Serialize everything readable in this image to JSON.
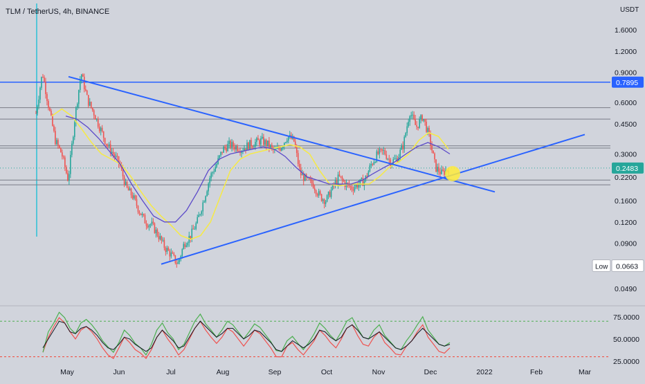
{
  "header": {
    "symbol": "TLM / TetherUS, 4h, BINANCE"
  },
  "axis": {
    "currency": "USDT"
  },
  "chart_data": [
    {
      "type": "candlestick",
      "title": "TLM / TetherUS, 4h, BINANCE",
      "scale": "log",
      "y_ticks": [
        1.6,
        1.2,
        0.9,
        0.6,
        0.45,
        0.3,
        0.22,
        0.16,
        0.12,
        0.09,
        0.049
      ],
      "y_tick_labels": [
        "1.6000",
        "1.2000",
        "0.9000",
        "0.6000",
        "0.4500",
        "0.3000",
        "0.2200",
        "0.1600",
        "0.1200",
        "0.0900",
        "0.0490"
      ],
      "x_tick_labels": [
        "May",
        "Jun",
        "Jul",
        "Aug",
        "Sep",
        "Oct",
        "Nov",
        "Dec",
        "2022",
        "Feb",
        "Mar"
      ],
      "ylim": [
        0.0395,
        2.28
      ],
      "series": [
        {
          "kind": "close_line",
          "values": [
            0.52,
            0.9,
            0.56,
            0.36,
            0.3,
            0.21,
            0.48,
            0.9,
            0.62,
            0.52,
            0.42,
            0.34,
            0.3,
            0.26,
            0.19,
            0.17,
            0.14,
            0.12,
            0.115,
            0.1,
            0.085,
            0.077,
            0.068,
            0.09,
            0.1,
            0.12,
            0.16,
            0.22,
            0.26,
            0.32,
            0.34,
            0.33,
            0.32,
            0.34,
            0.35,
            0.36,
            0.34,
            0.31,
            0.33,
            0.38,
            0.36,
            0.23,
            0.21,
            0.2,
            0.17,
            0.16,
            0.19,
            0.22,
            0.2,
            0.19,
            0.2,
            0.21,
            0.26,
            0.3,
            0.31,
            0.27,
            0.28,
            0.34,
            0.53,
            0.43,
            0.5,
            0.38,
            0.25,
            0.23,
            0.2483
          ]
        },
        {
          "kind": "ma_yellow",
          "values": [
            0.5,
            0.55,
            0.5,
            0.42,
            0.35,
            0.3,
            0.28,
            0.26,
            0.22,
            0.18,
            0.15,
            0.13,
            0.115,
            0.1,
            0.095,
            0.1,
            0.12,
            0.17,
            0.24,
            0.28,
            0.3,
            0.31,
            0.32,
            0.33,
            0.34,
            0.33,
            0.3,
            0.24,
            0.2,
            0.195,
            0.2,
            0.2,
            0.2,
            0.22,
            0.25,
            0.27,
            0.3,
            0.36,
            0.4,
            0.38,
            0.32
          ]
        },
        {
          "kind": "ma_purple",
          "values": [
            0.5,
            0.48,
            0.43,
            0.37,
            0.31,
            0.26,
            0.2,
            0.16,
            0.13,
            0.12,
            0.12,
            0.14,
            0.18,
            0.24,
            0.28,
            0.3,
            0.31,
            0.32,
            0.33,
            0.32,
            0.29,
            0.25,
            0.22,
            0.21,
            0.2,
            0.2,
            0.2,
            0.21,
            0.23,
            0.25,
            0.27,
            0.3,
            0.33,
            0.35,
            0.33,
            0.3
          ]
        }
      ],
      "price_lines": [
        0.7895,
        0.56,
        0.48,
        0.335,
        0.325,
        0.211,
        0.198
      ],
      "trendlines": [
        {
          "from": [
            "May",
            0.85
          ],
          "to": [
            "Dec",
            0.18
          ]
        },
        {
          "from": [
            "Jul",
            0.068
          ],
          "to": [
            "Mar",
            0.39
          ]
        }
      ],
      "price_labels": [
        {
          "text": "0.7895",
          "color": "#2962ff"
        },
        {
          "text": "0.2483",
          "color": "#26a69a"
        },
        {
          "text": "0.0663",
          "prefix": "Low"
        }
      ],
      "highlight": {
        "month": "Dec",
        "value": 0.23
      },
      "annotation_text": [
        "Low"
      ]
    },
    {
      "type": "line",
      "ylim": [
        25,
        85
      ],
      "y_ticks": [
        75,
        50,
        25
      ],
      "y_tick_labels": [
        "75.0000",
        "50.0000",
        "25.0000"
      ],
      "reference_lines": [
        70,
        30
      ],
      "series": [
        {
          "kind": "rsi_green",
          "values": [
            35,
            58,
            68,
            80,
            74,
            62,
            56,
            68,
            72,
            66,
            58,
            48,
            41,
            35,
            46,
            60,
            54,
            45,
            40,
            32,
            44,
            60,
            68,
            57,
            50,
            38,
            44,
            57,
            70,
            78,
            67,
            60,
            52,
            60,
            70,
            66,
            58,
            50,
            58,
            67,
            63,
            55,
            47,
            37,
            36,
            48,
            53,
            45,
            38,
            46,
            56,
            68,
            62,
            54,
            48,
            58,
            70,
            74,
            62,
            52,
            50,
            60,
            66,
            54,
            47,
            40,
            38,
            48,
            56,
            66,
            75,
            60,
            52,
            44,
            42,
            46
          ]
        },
        {
          "kind": "rsi_red",
          "values": [
            35,
            52,
            64,
            74,
            68,
            58,
            50,
            60,
            64,
            58,
            50,
            40,
            32,
            28,
            40,
            52,
            46,
            38,
            34,
            28,
            38,
            52,
            60,
            50,
            42,
            32,
            38,
            50,
            62,
            70,
            60,
            52,
            45,
            52,
            62,
            58,
            50,
            42,
            50,
            60,
            56,
            48,
            40,
            30,
            30,
            42,
            46,
            38,
            32,
            40,
            48,
            60,
            54,
            46,
            40,
            50,
            62,
            66,
            54,
            44,
            42,
            52,
            58,
            46,
            40,
            33,
            32,
            42,
            48,
            58,
            66,
            52,
            44,
            36,
            34,
            40
          ]
        },
        {
          "kind": "rsi_ma",
          "values": [
            40,
            50,
            60,
            70,
            68,
            58,
            56,
            62,
            64,
            60,
            54,
            46,
            40,
            38,
            44,
            52,
            50,
            44,
            40,
            36,
            40,
            52,
            60,
            54,
            48,
            40,
            42,
            52,
            62,
            70,
            64,
            58,
            52,
            56,
            62,
            62,
            56,
            50,
            54,
            60,
            58,
            52,
            46,
            38,
            36,
            42,
            48,
            44,
            40,
            44,
            50,
            60,
            58,
            52,
            48,
            52,
            62,
            66,
            60,
            52,
            50,
            54,
            58,
            52,
            46,
            40,
            38,
            42,
            48,
            56,
            62,
            56,
            50,
            44,
            42,
            44
          ]
        }
      ]
    }
  ]
}
